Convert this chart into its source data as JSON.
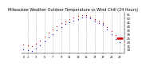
{
  "title": "Milwaukee Weather Outdoor Temperature vs Wind Chill (24 Hours)",
  "title_fontsize": 3.5,
  "background_color": "#ffffff",
  "ylim": [
    5,
    58
  ],
  "yticks": [
    10,
    15,
    20,
    25,
    30,
    35,
    40,
    45,
    50,
    55
  ],
  "ytick_labels": [
    "10",
    "15",
    "20",
    "25",
    "30",
    "35",
    "40",
    "45",
    "50",
    "55"
  ],
  "grid_color": "#999999",
  "red_color": "#cc0000",
  "blue_color": "#0000cc",
  "hours": [
    0,
    1,
    2,
    3,
    4,
    5,
    6,
    7,
    8,
    9,
    10,
    11,
    12,
    13,
    14,
    15,
    16,
    17,
    18,
    19,
    20,
    21,
    22,
    23
  ],
  "temp": [
    16,
    15,
    14,
    17,
    21,
    26,
    31,
    35,
    39,
    43,
    46,
    49,
    51,
    53,
    54,
    54,
    52,
    49,
    46,
    43,
    38,
    33,
    28,
    24
  ],
  "wind_chill": [
    10,
    9,
    8,
    11,
    15,
    20,
    25,
    29,
    34,
    38,
    42,
    45,
    47,
    49,
    51,
    52,
    50,
    47,
    44,
    41,
    35,
    29,
    23,
    19
  ],
  "current_temp_y": 24,
  "current_line_x1": 22.2,
  "current_line_x2": 23.8,
  "xtick_positions": [
    0,
    1,
    3,
    5,
    7,
    9,
    11,
    13,
    15,
    17,
    19,
    21,
    23
  ],
  "xtick_labels": [
    "0",
    "1",
    "3",
    "5",
    "7",
    "9",
    "11",
    "13",
    "15",
    "17",
    "19",
    "21",
    "23"
  ],
  "xlim": [
    -0.5,
    24.2
  ],
  "vgrid_positions": [
    1,
    3,
    5,
    7,
    9,
    11,
    13,
    15,
    17,
    19,
    21,
    23
  ]
}
